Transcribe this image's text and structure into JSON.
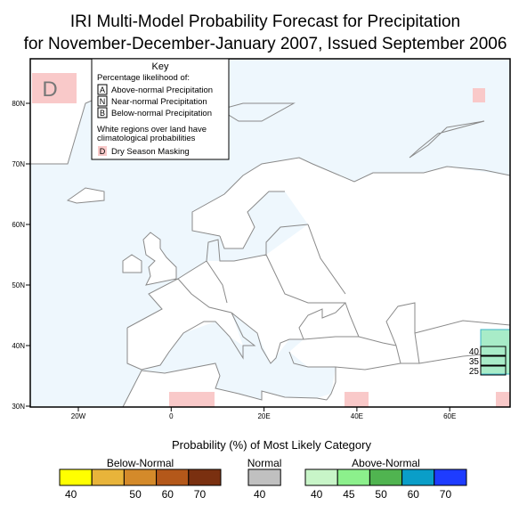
{
  "title": [
    "IRI Multi-Model Probability Forecast for Precipitation",
    "for November-December-January 2007, Issued September 2006"
  ],
  "map": {
    "lat_labels": [
      "80N",
      "70N",
      "60N",
      "50N",
      "40N",
      "30N"
    ],
    "lon_labels": [
      "20W",
      "0",
      "20E",
      "40E",
      "60E"
    ],
    "mask_letter": "D",
    "inset_labels": [
      "40",
      "35",
      "25"
    ]
  },
  "key": {
    "title": "Key",
    "subtitle": "Percentage likelihood of:",
    "items": [
      {
        "letter": "A",
        "label": "Above-normal Precipitation"
      },
      {
        "letter": "N",
        "label": "Near-normal Precipitation"
      },
      {
        "letter": "B",
        "label": "Below-normal Precipitation"
      }
    ],
    "note": [
      "White regions over land have",
      "climatological probabilities"
    ],
    "mask": {
      "letter": "D",
      "label": "Dry Season Masking"
    }
  },
  "legend": {
    "title": "Probability (%) of Most Likely Category",
    "groups": [
      {
        "name": "Below-Normal",
        "colors": [
          "#ffff00",
          "#e8b43a",
          "#d48a2a",
          "#b4581a",
          "#7a3010"
        ],
        "labels": [
          "40",
          "50",
          "60",
          "70"
        ]
      },
      {
        "name": "Normal",
        "colors": [
          "#c0c0c0"
        ],
        "labels": [
          "40"
        ]
      },
      {
        "name": "Above-Normal",
        "colors": [
          "#c8f5c8",
          "#8cf08c",
          "#50b450",
          "#0a9ec8",
          "#1e3cff"
        ],
        "labels": [
          "40",
          "45",
          "50",
          "60",
          "70"
        ]
      }
    ]
  }
}
